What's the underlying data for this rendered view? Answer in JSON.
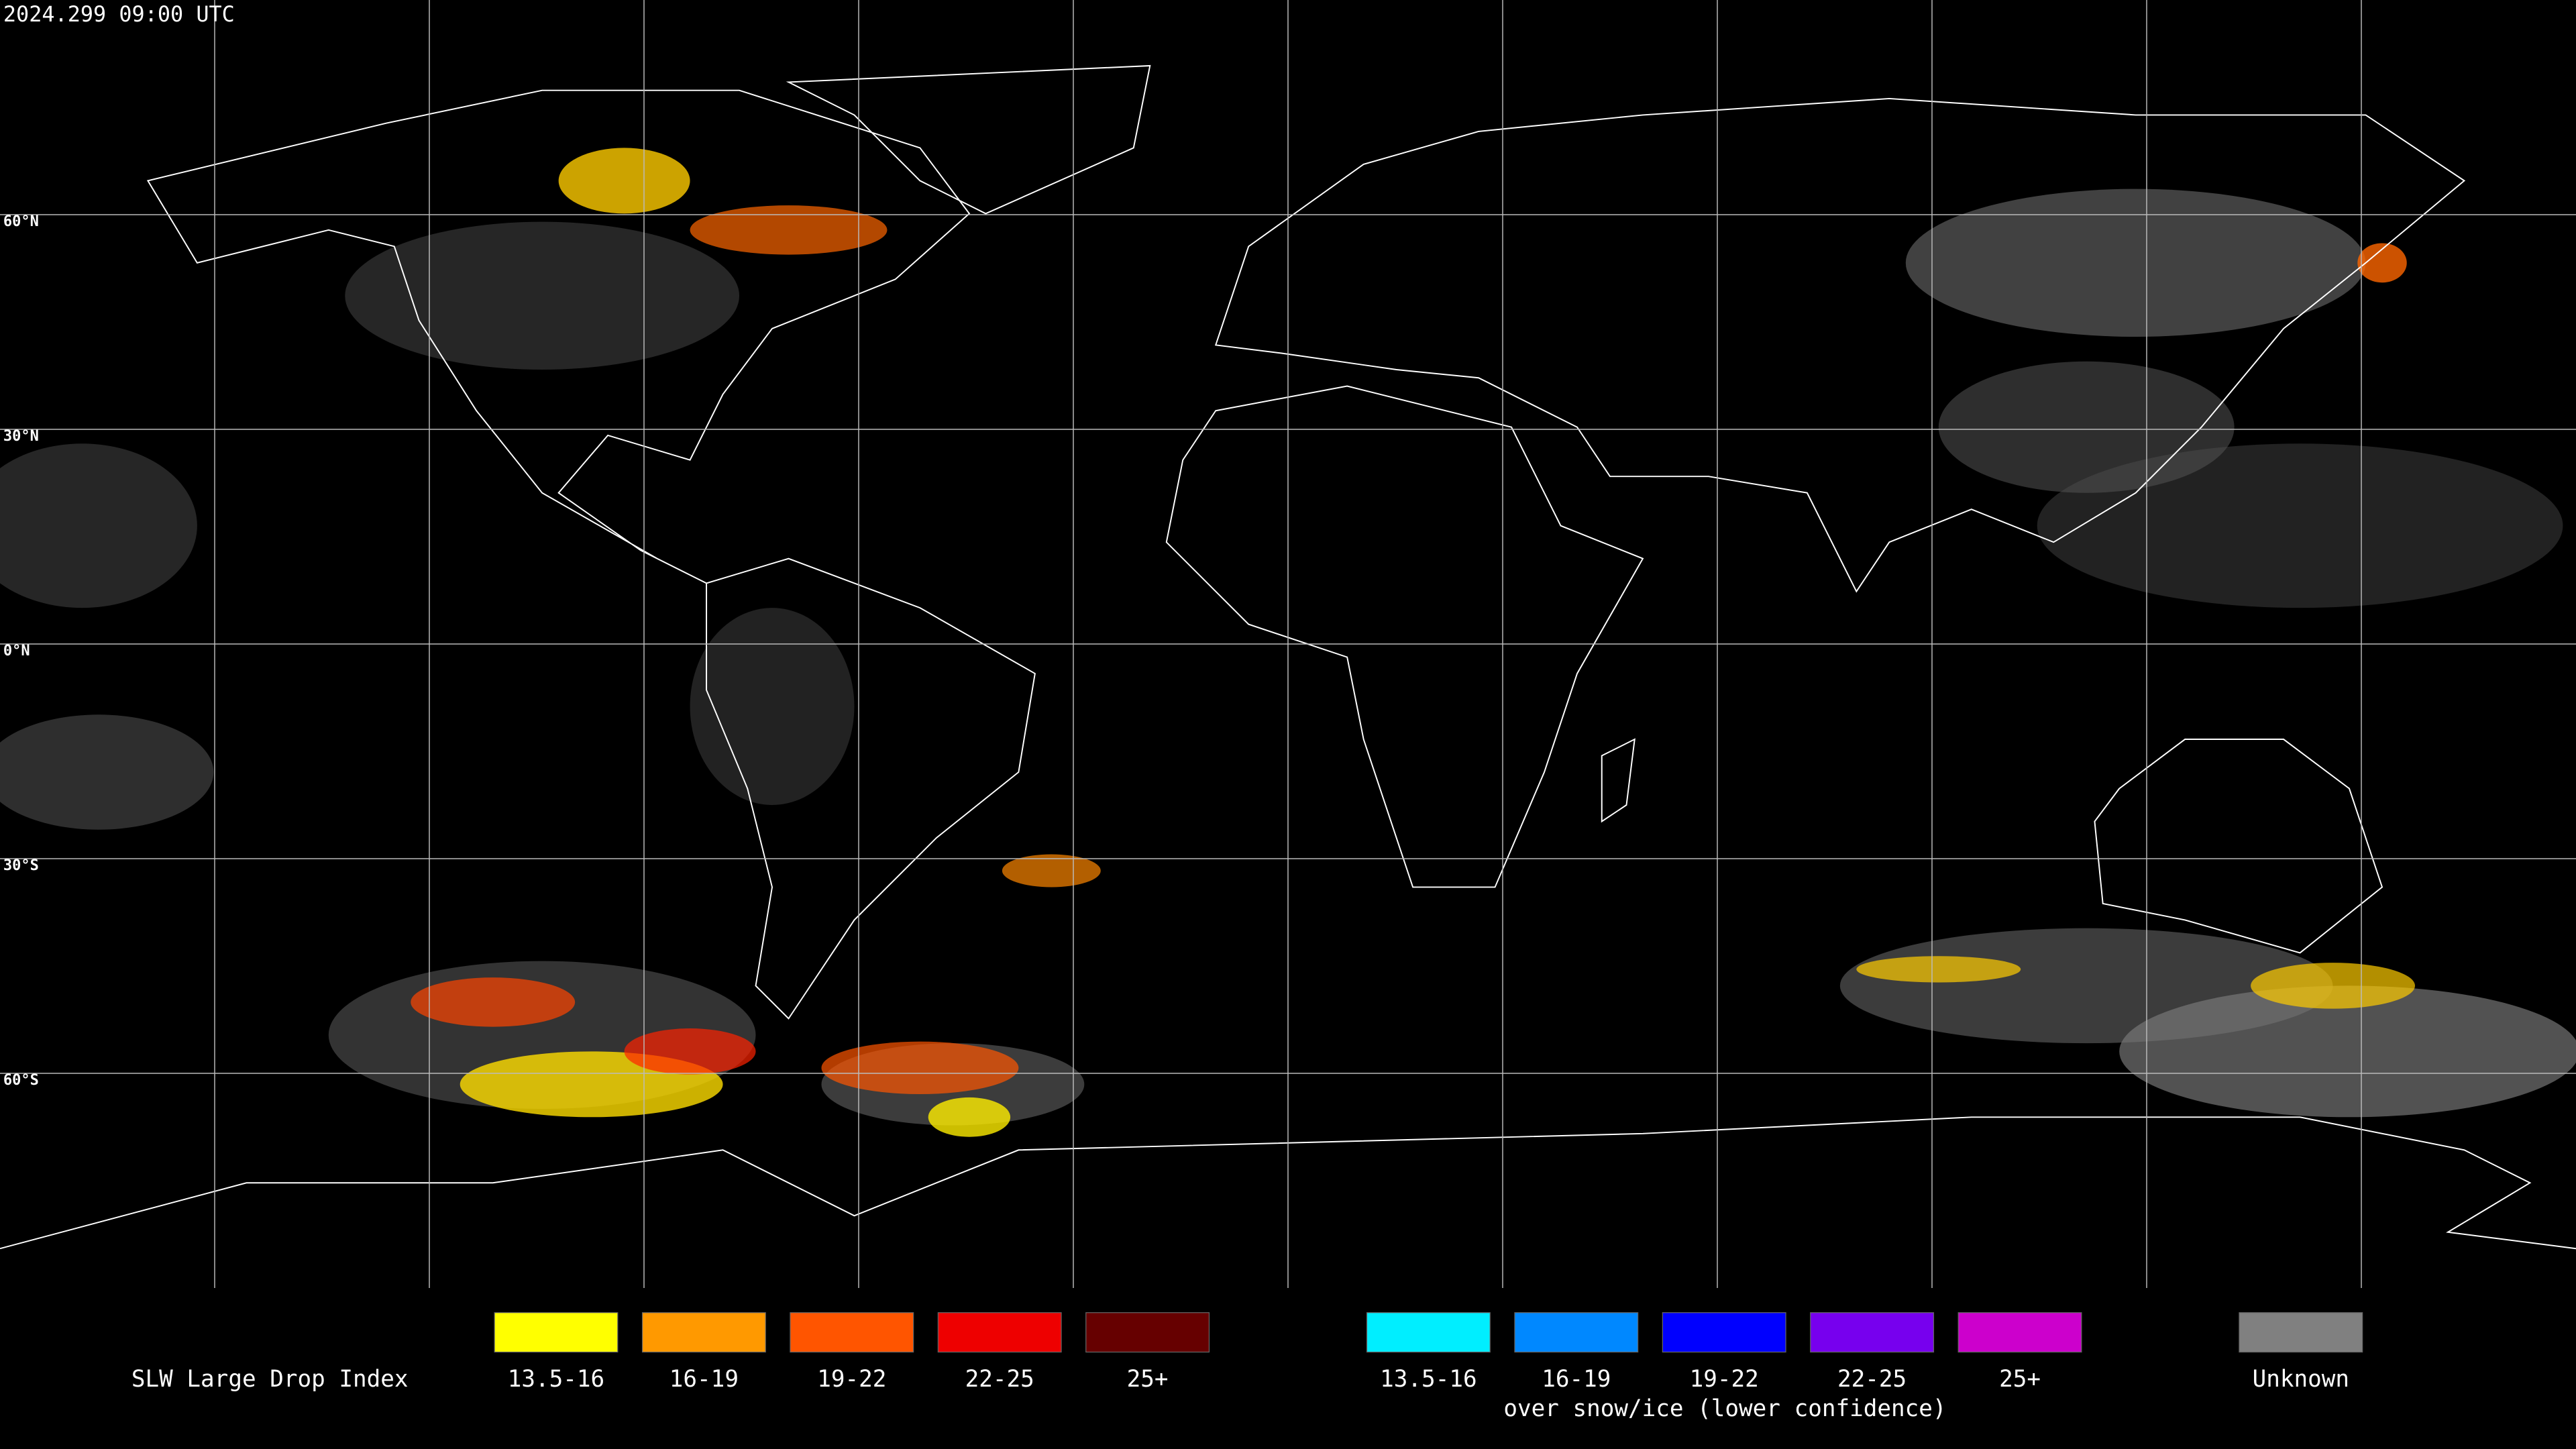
{
  "header": {
    "timestamp": "2024.299 09:00 UTC"
  },
  "map": {
    "latitude_labels": [
      "60°N",
      "30°N",
      "0°N",
      "30°S",
      "60°S"
    ]
  },
  "legend": {
    "title": "SLW Large Drop Index",
    "items": [
      {
        "label": "13.5-16",
        "color": "#ffff00"
      },
      {
        "label": "16-19",
        "color": "#ff9900"
      },
      {
        "label": "19-22",
        "color": "#ff5500"
      },
      {
        "label": "22-25",
        "color": "#ee0000"
      },
      {
        "label": "25+",
        "color": "#660000"
      }
    ],
    "snow_ice_items": [
      {
        "label": "13.5-16",
        "color": "#00eeff"
      },
      {
        "label": "16-19",
        "color": "#0088ff"
      },
      {
        "label": "19-22",
        "color": "#0000ff"
      },
      {
        "label": "22-25",
        "color": "#7700ee"
      },
      {
        "label": "25+",
        "color": "#cc00cc"
      }
    ],
    "snow_ice_caption": "over snow/ice (lower confidence)",
    "unknown": {
      "label": "Unknown",
      "color": "#808080"
    }
  }
}
